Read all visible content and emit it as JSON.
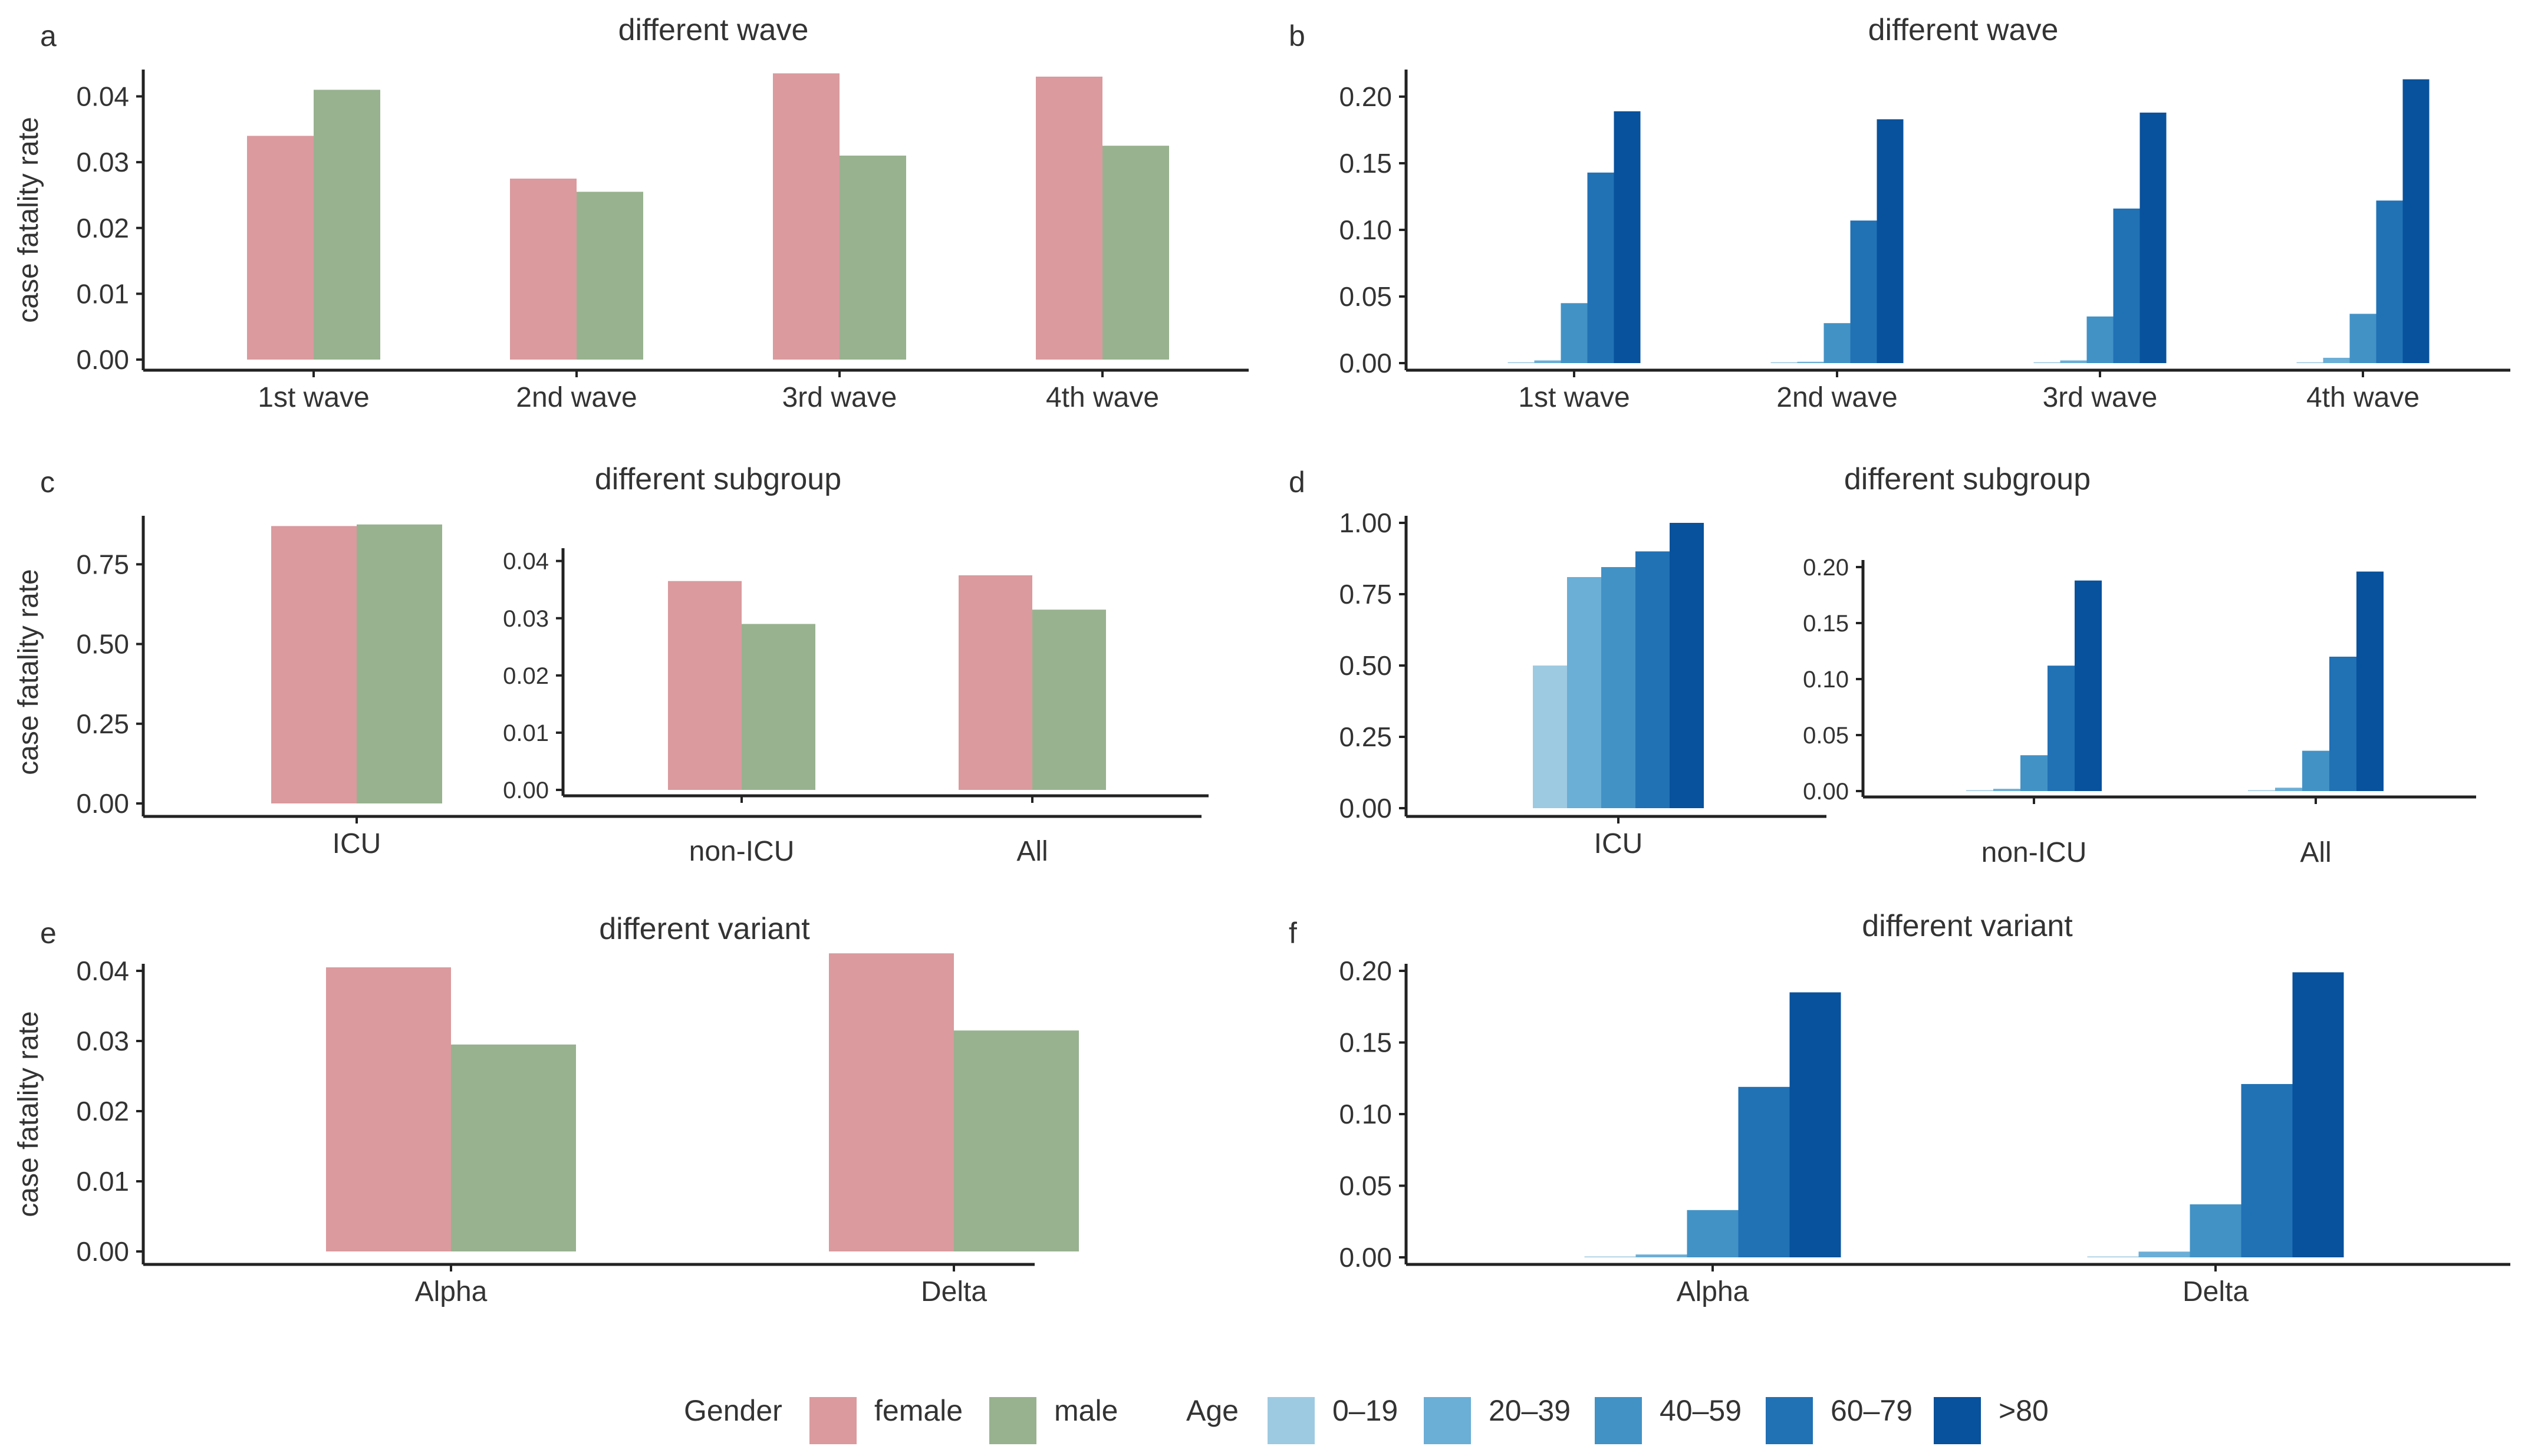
{
  "axis_label": "case fatality rate",
  "legend": {
    "gender_title": "Gender",
    "gender": [
      {
        "name": "female",
        "color": "#da9a9e"
      },
      {
        "name": "male",
        "color": "#98b28f"
      }
    ],
    "age_title": "Age",
    "age": [
      {
        "name": "0–19",
        "color": "#9ecae1"
      },
      {
        "name": "20–39",
        "color": "#6baed6"
      },
      {
        "name": "40–59",
        "color": "#4292c6"
      },
      {
        "name": "60–79",
        "color": "#2171b5"
      },
      {
        "name": ">80",
        "color": "#08519c"
      }
    ]
  },
  "chart_data": [
    {
      "panel": "a",
      "type": "bar",
      "title": "different wave",
      "ylabel": "case fatality rate",
      "ylim": [
        0,
        0.043
      ],
      "yticks": [
        "0.00",
        "0.01",
        "0.02",
        "0.03",
        "0.04"
      ],
      "categories": [
        "1st wave",
        "2nd wave",
        "3rd wave",
        "4th wave"
      ],
      "series": [
        {
          "name": "female",
          "values": [
            0.034,
            0.0275,
            0.0435,
            0.043
          ]
        },
        {
          "name": "male",
          "values": [
            0.041,
            0.0255,
            0.031,
            0.0325
          ]
        }
      ]
    },
    {
      "panel": "b",
      "type": "bar",
      "title": "different wave",
      "ylabel": "",
      "ylim": [
        0,
        0.215
      ],
      "yticks": [
        "0.00",
        "0.05",
        "0.10",
        "0.15",
        "0.20"
      ],
      "categories": [
        "1st wave",
        "2nd wave",
        "3rd wave",
        "4th wave"
      ],
      "series": [
        {
          "name": "0–19",
          "values": [
            0.0005,
            0.0005,
            0.0005,
            0.0005
          ]
        },
        {
          "name": "20–39",
          "values": [
            0.002,
            0.001,
            0.002,
            0.004
          ]
        },
        {
          "name": "40–59",
          "values": [
            0.045,
            0.03,
            0.035,
            0.037
          ]
        },
        {
          "name": "60–79",
          "values": [
            0.143,
            0.107,
            0.116,
            0.122
          ]
        },
        {
          "name": ">80",
          "values": [
            0.189,
            0.183,
            0.188,
            0.213
          ]
        }
      ]
    },
    {
      "panel": "c",
      "type": "bar",
      "title": "different subgroup",
      "ylabel": "case fatality rate",
      "ylim": [
        0,
        0.88
      ],
      "yticks": [
        "0.00",
        "0.25",
        "0.50",
        "0.75"
      ],
      "categories": [
        "ICU"
      ],
      "series": [
        {
          "name": "female",
          "values": [
            0.87
          ]
        },
        {
          "name": "male",
          "values": [
            0.875
          ]
        }
      ]
    },
    {
      "panel": "c-inset",
      "type": "bar",
      "title": "",
      "ylabel": "",
      "ylim": [
        0,
        0.041
      ],
      "yticks": [
        "0.00",
        "0.01",
        "0.02",
        "0.03",
        "0.04"
      ],
      "categories": [
        "non-ICU",
        "All"
      ],
      "series": [
        {
          "name": "female",
          "values": [
            0.0365,
            0.0375
          ]
        },
        {
          "name": "male",
          "values": [
            0.029,
            0.0315
          ]
        }
      ]
    },
    {
      "panel": "d",
      "type": "bar",
      "title": "different subgroup",
      "ylabel": "",
      "ylim": [
        0,
        1.0
      ],
      "yticks": [
        "0.00",
        "0.25",
        "0.50",
        "0.75",
        "1.00"
      ],
      "categories": [
        "ICU"
      ],
      "series": [
        {
          "name": "0–19",
          "values": [
            0.5
          ]
        },
        {
          "name": "20–39",
          "values": [
            0.81
          ]
        },
        {
          "name": "40–59",
          "values": [
            0.845
          ]
        },
        {
          "name": "60–79",
          "values": [
            0.9
          ]
        },
        {
          "name": ">80",
          "values": [
            1.0
          ]
        }
      ]
    },
    {
      "panel": "d-inset",
      "type": "bar",
      "title": "",
      "ylabel": "",
      "ylim": [
        0,
        0.2
      ],
      "yticks": [
        "0.00",
        "0.05",
        "0.10",
        "0.15",
        "0.20"
      ],
      "categories": [
        "non-ICU",
        "All"
      ],
      "series": [
        {
          "name": "0–19",
          "values": [
            0.0005,
            0.0005
          ]
        },
        {
          "name": "20–39",
          "values": [
            0.002,
            0.003
          ]
        },
        {
          "name": "40–59",
          "values": [
            0.032,
            0.036
          ]
        },
        {
          "name": "60–79",
          "values": [
            0.112,
            0.12
          ]
        },
        {
          "name": ">80",
          "values": [
            0.188,
            0.196
          ]
        }
      ]
    },
    {
      "panel": "e",
      "type": "bar",
      "title": "different variant",
      "ylabel": "case fatality rate",
      "ylim": [
        0,
        0.04
      ],
      "yticks": [
        "0.00",
        "0.01",
        "0.02",
        "0.03",
        "0.04"
      ],
      "categories": [
        "Alpha",
        "Delta"
      ],
      "series": [
        {
          "name": "female",
          "values": [
            0.0405,
            0.0425
          ]
        },
        {
          "name": "male",
          "values": [
            0.0295,
            0.0315
          ]
        }
      ]
    },
    {
      "panel": "f",
      "type": "bar",
      "title": "different variant",
      "ylabel": "",
      "ylim": [
        0,
        0.2
      ],
      "yticks": [
        "0.00",
        "0.05",
        "0.10",
        "0.15",
        "0.20"
      ],
      "categories": [
        "Alpha",
        "Delta"
      ],
      "series": [
        {
          "name": "0–19",
          "values": [
            0.0005,
            0.0005
          ]
        },
        {
          "name": "20–39",
          "values": [
            0.002,
            0.004
          ]
        },
        {
          "name": "40–59",
          "values": [
            0.033,
            0.037
          ]
        },
        {
          "name": "60–79",
          "values": [
            0.119,
            0.121
          ]
        },
        {
          "name": ">80",
          "values": [
            0.185,
            0.199
          ]
        }
      ]
    }
  ]
}
